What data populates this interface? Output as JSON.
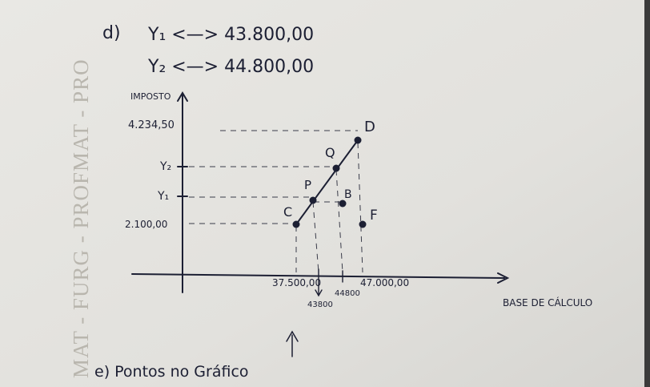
{
  "watermark": "MAT - FURG - PROFMAT - PRO",
  "item_d": {
    "label": "d)",
    "lines": [
      "Y₁ <—> 43.800,00",
      "Y₂ <—> 44.800,00"
    ]
  },
  "graph": {
    "y_axis_label": "IMPOSTO",
    "x_axis_label": "BASE DE CÁLCULO",
    "y_ticks": [
      "4.234,50",
      "Y₂",
      "Y₁",
      "2.100,00"
    ],
    "x_ticks": [
      "37.500,00",
      "43800",
      "44800",
      "47.000,00"
    ],
    "points": [
      "C",
      "P",
      "Q",
      "D",
      "B",
      "F"
    ]
  },
  "item_e": {
    "label": "e) Pontos no Gráfico"
  }
}
